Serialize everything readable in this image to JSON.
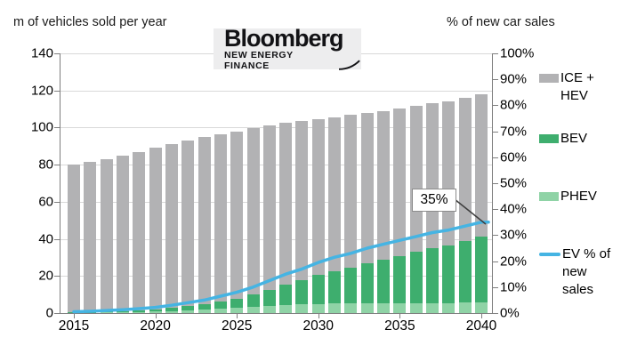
{
  "header": {
    "left_axis_title": "m of vehicles sold per year",
    "right_axis_title": "% of new car sales"
  },
  "logo": {
    "brand": "Bloomberg",
    "division": "NEW ENERGY FINANCE"
  },
  "annotation": {
    "label": "35%"
  },
  "legend": [
    {
      "id": "ice-hev",
      "label": "ICE +\nHEV",
      "type": "bar",
      "color": "#b2b2b4"
    },
    {
      "id": "bev",
      "label": "BEV",
      "type": "bar",
      "color": "#3eae6e"
    },
    {
      "id": "phev",
      "label": "PHEV",
      "type": "bar",
      "color": "#8fd3a6"
    },
    {
      "id": "ev-share",
      "label": "EV % of\nnew\nsales",
      "type": "line",
      "color": "#45b4e3"
    }
  ],
  "colors": {
    "ice_hev": "#b2b2b4",
    "bev": "#3eae6e",
    "phev": "#8fd3a6",
    "ev_line": "#45b4e3",
    "gridline": "#d9d9d9",
    "axis": "#7f7f7f",
    "logo_bg": "#ededee"
  },
  "chart_data": {
    "type": "combo-stacked-bar-line",
    "title": "",
    "x": [
      2015,
      2016,
      2017,
      2018,
      2019,
      2020,
      2021,
      2022,
      2023,
      2024,
      2025,
      2026,
      2027,
      2028,
      2029,
      2030,
      2031,
      2032,
      2033,
      2034,
      2035,
      2036,
      2037,
      2038,
      2039,
      2040
    ],
    "x_ticks": [
      2015,
      2020,
      2025,
      2030,
      2035,
      2040
    ],
    "stack_order_bottom_to_top": [
      "PHEV",
      "BEV",
      "ICE + HEV"
    ],
    "series": [
      {
        "name": "PHEV",
        "type": "bar",
        "axis": "left",
        "color": "#8fd3a6",
        "values": [
          0.2,
          0.3,
          0.4,
          0.5,
          0.7,
          0.9,
          1.1,
          1.5,
          1.9,
          2.4,
          2.8,
          3.4,
          3.9,
          4.4,
          4.7,
          5.0,
          5.1,
          5.2,
          5.2,
          5.3,
          5.3,
          5.4,
          5.5,
          5.5,
          5.6,
          5.7
        ]
      },
      {
        "name": "BEV",
        "type": "bar",
        "axis": "left",
        "color": "#3eae6e",
        "values": [
          0.2,
          0.3,
          0.4,
          0.6,
          0.8,
          1.1,
          1.6,
          2.2,
          2.9,
          3.9,
          5.0,
          6.6,
          8.7,
          11.0,
          12.9,
          15.4,
          17.6,
          19.4,
          21.8,
          23.6,
          25.6,
          27.5,
          29.5,
          31.0,
          33.3,
          35.6
        ]
      },
      {
        "name": "ICE + HEV",
        "type": "bar",
        "axis": "left",
        "color": "#b2b2b4",
        "values": [
          79.6,
          80.9,
          82.2,
          83.9,
          85.5,
          87.0,
          88.3,
          89.3,
          90.2,
          90.2,
          90.2,
          89.5,
          88.4,
          87.1,
          85.9,
          84.1,
          82.8,
          82.4,
          81.0,
          80.1,
          79.6,
          78.6,
          78.0,
          77.5,
          77.1,
          76.7
        ]
      },
      {
        "name": "EV % of new sales",
        "type": "line",
        "axis": "right",
        "color": "#45b4e3",
        "values": [
          0.5,
          0.7,
          1.0,
          1.3,
          1.7,
          2.2,
          3.0,
          4.0,
          5.0,
          6.5,
          8.0,
          10.0,
          12.5,
          15.0,
          17.0,
          19.5,
          21.5,
          23.0,
          25.0,
          26.5,
          28.0,
          29.5,
          31.0,
          32.0,
          33.5,
          35.0
        ]
      }
    ],
    "left_axis": {
      "label": "m of vehicles sold per year",
      "min": 0,
      "max": 140,
      "step": 20
    },
    "right_axis": {
      "label": "% of new car sales",
      "min": 0,
      "max": 100,
      "step": 10,
      "suffix": "%"
    },
    "grid": true,
    "legend_position": "right",
    "annotation": {
      "text": "35%",
      "year": 2040,
      "value_pct": 35
    }
  }
}
